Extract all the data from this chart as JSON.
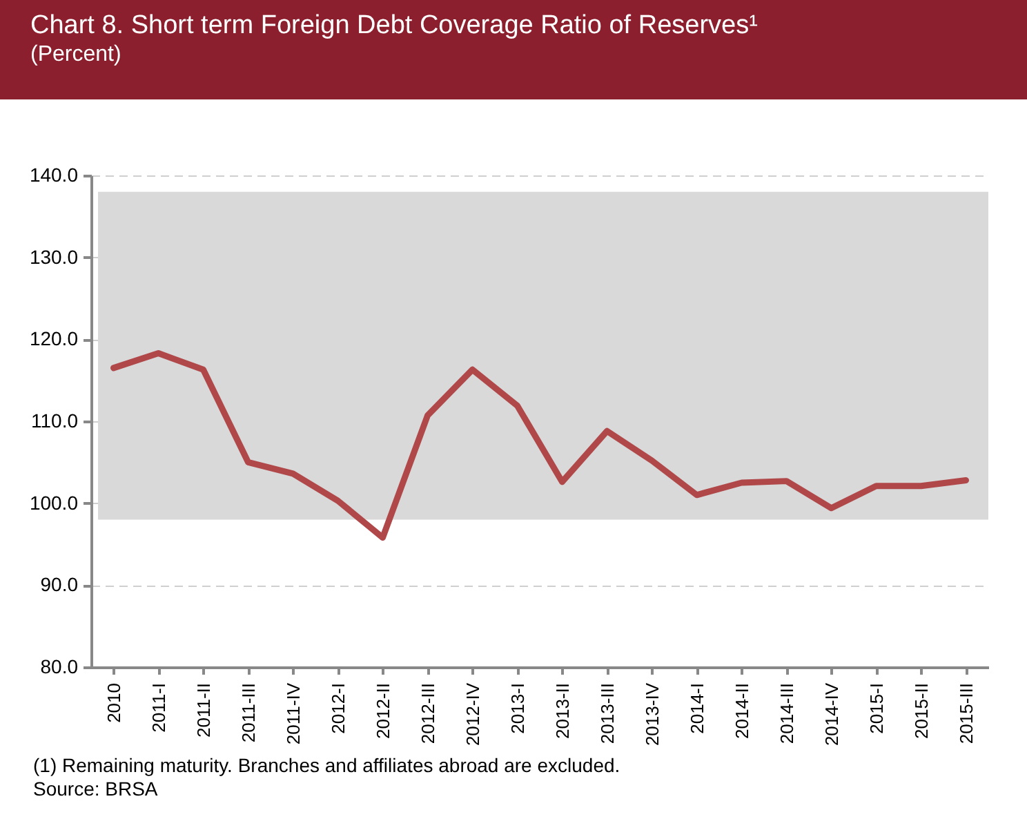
{
  "chart_data": {
    "type": "line",
    "title": "Chart 8.  Short term Foreign Debt Coverage Ratio of Reserves¹",
    "subtitle": "(Percent)",
    "categories": [
      "2010",
      "2011-I",
      "2011-II",
      "2011-III",
      "2011-IV",
      "2012-I",
      "2012-II",
      "2012-III",
      "2012-IV",
      "2013-I",
      "2013-II",
      "2013-III",
      "2013-IV",
      "2014-I",
      "2014-II",
      "2014-III",
      "2014-IV",
      "2015-I",
      "2015-II",
      "2015-III"
    ],
    "series": [
      {
        "color": "#b0484a",
        "values": [
          116.5,
          118.3,
          116.3,
          105.0,
          103.6,
          100.3,
          95.8,
          110.7,
          116.3,
          111.9,
          102.6,
          108.8,
          105.2,
          101.0,
          102.5,
          102.7,
          99.4,
          102.1,
          102.1,
          102.8
        ]
      }
    ],
    "ylim": [
      80,
      140
    ],
    "yticks": [
      {
        "value": 80,
        "label": "80.0"
      },
      {
        "value": 90,
        "label": "90.0"
      },
      {
        "value": 100,
        "label": "100.0"
      },
      {
        "value": 110,
        "label": "110.0"
      },
      {
        "value": 120,
        "label": "120.0"
      },
      {
        "value": 130,
        "label": "130.0"
      },
      {
        "value": 140,
        "label": "140.0"
      }
    ],
    "bands": [
      {
        "axis": "y",
        "from": 98,
        "to": 138,
        "color": "#d9d9d9"
      }
    ],
    "grid": "y",
    "marker": "none",
    "line_style": "solid",
    "annotations": [
      "(1) Remaining maturity. Branches and affiliates abroad are excluded.",
      "Source: BRSA"
    ]
  }
}
